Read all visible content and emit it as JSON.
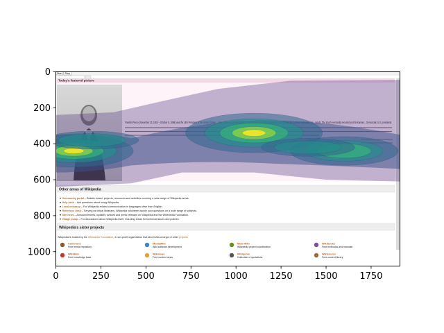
{
  "chart_data": {
    "type": "heatmap",
    "title": "",
    "xlabel": "",
    "ylabel": "",
    "xlim": [
      0,
      1910
    ],
    "ylim": [
      1080,
      0
    ],
    "x_ticks": [
      0,
      250,
      500,
      750,
      1000,
      1250,
      1500,
      1750
    ],
    "y_ticks": [
      0,
      200,
      400,
      600,
      800,
      1000
    ],
    "grid": false,
    "background_image": "Wikipedia main page screenshot",
    "colormap": "viridis",
    "hotspots": [
      {
        "x": 100,
        "y": 440,
        "intensity": 1.0
      },
      {
        "x": 1100,
        "y": 340,
        "intensity": 1.0
      },
      {
        "x": 1600,
        "y": 440,
        "intensity": 0.7
      },
      {
        "x": 200,
        "y": 380,
        "intensity": 0.6
      },
      {
        "x": 1400,
        "y": 420,
        "intensity": 0.6
      }
    ]
  },
  "wiki": {
    "nav": [
      "Start",
      "Stop"
    ],
    "featured_header": "Today's featured picture",
    "featured_text": "Franklin Pierce (November 23, 1804 – October 8, 1869) was the 14th President of the United States... unity of the nation. He alienated anti-slavery groups by supporting and signing the Kansas–Nebraska Act... South. The South eventually seceded and his Kansas... Democratic U.S. presidents.",
    "other_header": "Other areas of Wikipedia",
    "other_items": [
      {
        "name": "Community portal",
        "desc": " – Bulletin board, projects, resources and activities covering a wide range of Wikipedia areas."
      },
      {
        "name": "Help desk",
        "desc": " – Ask questions about using Wikipedia."
      },
      {
        "name": "Local embassy",
        "desc": " – For Wikipedia-related communication in languages other than English."
      },
      {
        "name": "Reference desk",
        "desc": " – Serving as virtual librarians, Wikipedia volunteers tackle your questions on a wide range of subjects."
      },
      {
        "name": "Site news",
        "desc": " – Announcements, updates, articles and press releases on Wikipedia and the Wikimedia Foundation."
      },
      {
        "name": "Village pump",
        "desc": " – For discussions about Wikipedia itself, including areas for technical issues and policies."
      }
    ],
    "sister_header": "Wikipedia's sister projects",
    "sister_intro_a": "Wikipedia is hosted by the ",
    "sister_intro_link": "Wikimedia Foundation",
    "sister_intro_b": ", a non-profit organization that also hosts a range of other ",
    "sister_intro_link2": "projects",
    "sisters": [
      {
        "name": "Commons",
        "desc": "Free media repository"
      },
      {
        "name": "MediaWiki",
        "desc": "Wiki software development"
      },
      {
        "name": "Meta-Wiki",
        "desc": "Wikimedia project coordination"
      },
      {
        "name": "Wikibooks",
        "desc": "Free textbooks and manuals"
      },
      {
        "name": "Wikidata",
        "desc": "Free knowledge base"
      },
      {
        "name": "Wikinews",
        "desc": "Free-content news"
      },
      {
        "name": "Wikiquote",
        "desc": "Collection of quotations"
      },
      {
        "name": "Wikisource",
        "desc": "Free-content library"
      }
    ]
  }
}
